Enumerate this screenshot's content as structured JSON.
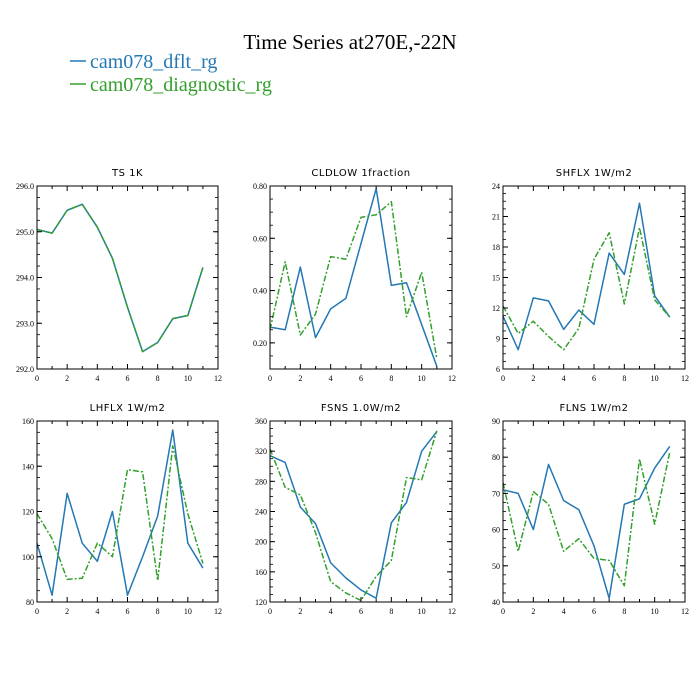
{
  "page": {
    "title": "Time Series at270E,-22N"
  },
  "legend": [
    {
      "label": "cam078_dflt_rg",
      "color": "#2378b5",
      "dash": "none"
    },
    {
      "label": "cam078_diagnostic_rg",
      "color": "#33a02c",
      "dash": "6,2,2,2"
    }
  ],
  "colors": {
    "series1": "#2378b5",
    "series2": "#33a02c"
  },
  "chart_data": [
    {
      "type": "line",
      "title": "TS   1K",
      "xlim": [
        0,
        12
      ],
      "xticks": [
        0,
        2,
        4,
        6,
        8,
        10,
        12
      ],
      "ylim": [
        292.0,
        296.0
      ],
      "yticks": [
        292.0,
        293.0,
        294.0,
        295.0,
        296.0
      ],
      "ytick_labels": [
        "292.0",
        "293.0",
        "294.0",
        "295.0",
        "296.0"
      ],
      "x": [
        0,
        1,
        2,
        3,
        4,
        5,
        6,
        7,
        8,
        9,
        10,
        11
      ],
      "series": [
        {
          "values": [
            295.05,
            294.97,
            295.47,
            295.6,
            295.1,
            294.42,
            293.35,
            292.38,
            292.58,
            293.1,
            293.17,
            294.22
          ]
        },
        {
          "values": [
            295.05,
            294.97,
            295.47,
            295.6,
            295.1,
            294.42,
            293.35,
            292.38,
            292.58,
            293.1,
            293.17,
            294.22
          ]
        }
      ]
    },
    {
      "type": "line",
      "title": "CLDLOW   1fraction",
      "xlim": [
        0,
        12
      ],
      "xticks": [
        0,
        2,
        4,
        6,
        8,
        10,
        12
      ],
      "ylim": [
        0.1,
        0.8
      ],
      "yticks": [
        0.2,
        0.4,
        0.6,
        0.8
      ],
      "ytick_labels": [
        "0.20",
        "0.40",
        "0.60",
        "0.80"
      ],
      "x": [
        0,
        1,
        2,
        3,
        4,
        5,
        6,
        7,
        8,
        9,
        10,
        11
      ],
      "series": [
        {
          "values": [
            0.26,
            0.25,
            0.49,
            0.22,
            0.33,
            0.37,
            0.58,
            0.79,
            0.42,
            0.43,
            0.27,
            0.11
          ]
        },
        {
          "values": [
            0.25,
            0.51,
            0.23,
            0.31,
            0.53,
            0.52,
            0.68,
            0.69,
            0.74,
            0.3,
            0.47,
            0.14
          ]
        }
      ]
    },
    {
      "type": "line",
      "title": "SHFLX   1W/m2",
      "xlim": [
        0,
        12
      ],
      "xticks": [
        0,
        2,
        4,
        6,
        8,
        10,
        12
      ],
      "ylim": [
        6,
        24
      ],
      "yticks": [
        6,
        9,
        12,
        15,
        18,
        21,
        24
      ],
      "ytick_labels": [
        "6",
        "9",
        "12",
        "15",
        "18",
        "21",
        "24"
      ],
      "x": [
        0,
        1,
        2,
        3,
        4,
        5,
        6,
        7,
        8,
        9,
        10,
        11
      ],
      "series": [
        {
          "values": [
            11.2,
            7.9,
            13.0,
            12.7,
            9.9,
            11.8,
            10.4,
            17.4,
            15.3,
            22.3,
            13.2,
            11.1
          ]
        },
        {
          "values": [
            12.2,
            9.5,
            10.7,
            9.2,
            7.9,
            10.0,
            16.8,
            19.4,
            12.4,
            19.9,
            12.8,
            11.1
          ]
        }
      ]
    },
    {
      "type": "line",
      "title": "LHFLX   1W/m2",
      "xlim": [
        0,
        12
      ],
      "xticks": [
        0,
        2,
        4,
        6,
        8,
        10,
        12
      ],
      "ylim": [
        80,
        160
      ],
      "yticks": [
        80,
        100,
        120,
        140,
        160
      ],
      "ytick_labels": [
        "80",
        "100",
        "120",
        "140",
        "160"
      ],
      "x": [
        0,
        1,
        2,
        3,
        4,
        5,
        6,
        7,
        8,
        9,
        10,
        11
      ],
      "series": [
        {
          "values": [
            106,
            83,
            128,
            106,
            98,
            120,
            83,
            100,
            118,
            156,
            106,
            95
          ]
        },
        {
          "values": [
            119,
            108,
            90,
            90.5,
            106,
            100,
            138.5,
            137.5,
            89.5,
            149,
            119,
            97
          ]
        }
      ]
    },
    {
      "type": "line",
      "title": "FSNS   1.0W/m2",
      "xlim": [
        0,
        12
      ],
      "xticks": [
        0,
        2,
        4,
        6,
        8,
        10,
        12
      ],
      "ylim": [
        120,
        360
      ],
      "yticks": [
        120,
        160,
        200,
        240,
        280,
        320,
        360
      ],
      "ytick_labels": [
        "120",
        "160",
        "200",
        "240",
        "280",
        "320",
        "360"
      ],
      "x": [
        0,
        1,
        2,
        3,
        4,
        5,
        6,
        7,
        8,
        9,
        10,
        11
      ],
      "series": [
        {
          "values": [
            314,
            305,
            246,
            224,
            172,
            152,
            136,
            125,
            225,
            252,
            320,
            346
          ]
        },
        {
          "values": [
            323,
            272,
            262,
            212,
            147,
            132,
            122,
            154,
            175,
            285,
            282,
            347
          ]
        }
      ]
    },
    {
      "type": "line",
      "title": "FLNS   1W/m2",
      "xlim": [
        0,
        12
      ],
      "xticks": [
        0,
        2,
        4,
        6,
        8,
        10,
        12
      ],
      "ylim": [
        40,
        90
      ],
      "yticks": [
        40,
        50,
        60,
        70,
        80,
        90
      ],
      "ytick_labels": [
        "40",
        "50",
        "60",
        "70",
        "80",
        "90"
      ],
      "x": [
        0,
        1,
        2,
        3,
        4,
        5,
        6,
        7,
        8,
        9,
        10,
        11
      ],
      "series": [
        {
          "values": [
            71,
            70,
            60,
            78,
            68,
            65.5,
            55.5,
            41,
            67,
            68.5,
            77,
            83
          ]
        },
        {
          "values": [
            73,
            54,
            70.5,
            67,
            54,
            57.5,
            52,
            51.5,
            44.5,
            79.5,
            61.5,
            81.5
          ]
        }
      ]
    }
  ]
}
